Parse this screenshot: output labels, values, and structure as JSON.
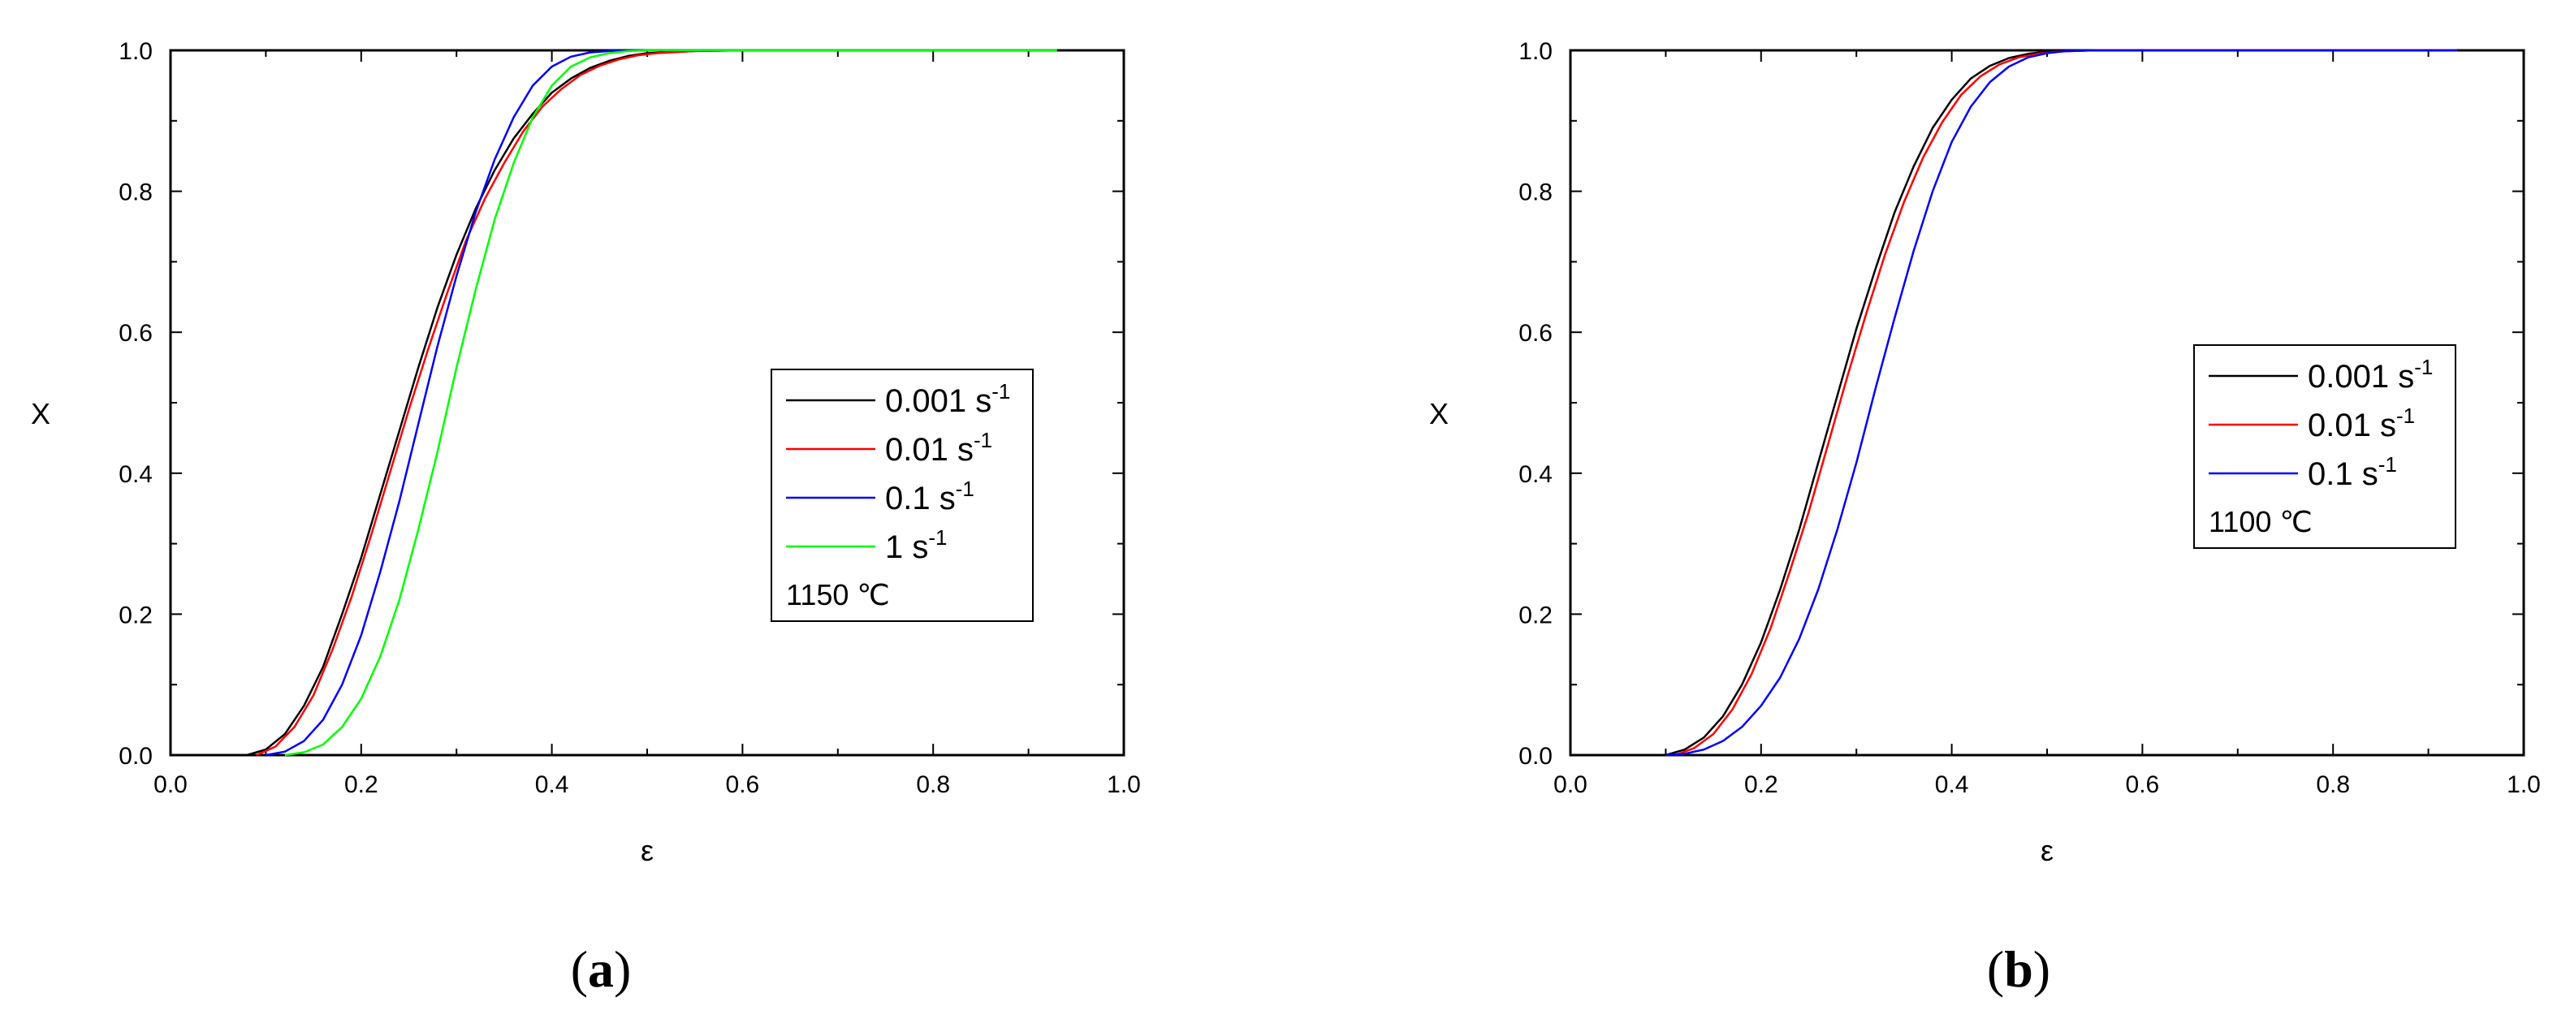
{
  "chart_data": [
    {
      "type": "line",
      "panel_label": "a",
      "xlabel": "ε",
      "ylabel": "X",
      "xlim": [
        0.0,
        1.0
      ],
      "ylim": [
        0.0,
        1.0
      ],
      "xticks": [
        "0.0",
        "0.2",
        "0.4",
        "0.6",
        "0.8",
        "1.0"
      ],
      "yticks": [
        "0.0",
        "0.2",
        "0.4",
        "0.6",
        "0.8",
        "1.0"
      ],
      "grid": false,
      "legend_position": "right",
      "legend_note": "1150 ℃",
      "series": [
        {
          "name": "0.001 s",
          "exp": "-1",
          "color": "#000000",
          "x": [
            0.08,
            0.1,
            0.12,
            0.14,
            0.16,
            0.18,
            0.2,
            0.22,
            0.24,
            0.26,
            0.28,
            0.3,
            0.32,
            0.34,
            0.36,
            0.38,
            0.4,
            0.42,
            0.44,
            0.46,
            0.48,
            0.5,
            0.55,
            0.6,
            0.7,
            0.8,
            0.93
          ],
          "y": [
            0.0,
            0.008,
            0.03,
            0.07,
            0.125,
            0.2,
            0.28,
            0.37,
            0.46,
            0.55,
            0.635,
            0.71,
            0.775,
            0.83,
            0.875,
            0.91,
            0.94,
            0.96,
            0.975,
            0.985,
            0.992,
            0.996,
            0.999,
            1.0,
            1.0,
            1.0,
            1.0
          ]
        },
        {
          "name": "0.01 s",
          "exp": "-1",
          "color": "#ff0000",
          "x": [
            0.09,
            0.11,
            0.13,
            0.15,
            0.17,
            0.19,
            0.21,
            0.23,
            0.25,
            0.27,
            0.29,
            0.31,
            0.33,
            0.35,
            0.37,
            0.39,
            0.41,
            0.43,
            0.45,
            0.47,
            0.49,
            0.51,
            0.55,
            0.6,
            0.7,
            0.8,
            0.93
          ],
          "y": [
            0.0,
            0.012,
            0.04,
            0.085,
            0.15,
            0.225,
            0.31,
            0.4,
            0.49,
            0.575,
            0.655,
            0.73,
            0.79,
            0.84,
            0.885,
            0.92,
            0.945,
            0.965,
            0.978,
            0.987,
            0.993,
            0.996,
            0.999,
            1.0,
            1.0,
            1.0,
            1.0
          ]
        },
        {
          "name": "0.1 s",
          "exp": "-1",
          "color": "#0000ff",
          "x": [
            0.1,
            0.12,
            0.14,
            0.16,
            0.18,
            0.2,
            0.22,
            0.24,
            0.26,
            0.28,
            0.3,
            0.32,
            0.34,
            0.36,
            0.38,
            0.4,
            0.42,
            0.44,
            0.46,
            0.48,
            0.5,
            0.55,
            0.6,
            0.7,
            0.8,
            0.93
          ],
          "y": [
            0.0,
            0.005,
            0.02,
            0.05,
            0.1,
            0.17,
            0.26,
            0.36,
            0.47,
            0.58,
            0.68,
            0.77,
            0.845,
            0.905,
            0.95,
            0.977,
            0.991,
            0.997,
            0.999,
            1.0,
            1.0,
            1.0,
            1.0,
            1.0,
            1.0,
            1.0
          ]
        },
        {
          "name": "1 s",
          "exp": "-1",
          "color": "#00ff00",
          "x": [
            0.12,
            0.14,
            0.16,
            0.18,
            0.2,
            0.22,
            0.24,
            0.26,
            0.28,
            0.3,
            0.32,
            0.34,
            0.36,
            0.38,
            0.4,
            0.42,
            0.44,
            0.46,
            0.48,
            0.5,
            0.55,
            0.6,
            0.7,
            0.8,
            0.93
          ],
          "y": [
            0.0,
            0.004,
            0.015,
            0.04,
            0.08,
            0.14,
            0.22,
            0.32,
            0.43,
            0.55,
            0.66,
            0.76,
            0.84,
            0.905,
            0.95,
            0.977,
            0.99,
            0.996,
            0.999,
            1.0,
            1.0,
            1.0,
            1.0,
            1.0,
            1.0
          ]
        }
      ]
    },
    {
      "type": "line",
      "panel_label": "b",
      "xlabel": "ε",
      "ylabel": "X",
      "xlim": [
        0.0,
        1.0
      ],
      "ylim": [
        0.0,
        1.0
      ],
      "xticks": [
        "0.0",
        "0.2",
        "0.4",
        "0.6",
        "0.8",
        "1.0"
      ],
      "yticks": [
        "0.0",
        "0.2",
        "0.4",
        "0.6",
        "0.8",
        "1.0"
      ],
      "grid": false,
      "legend_position": "right",
      "legend_note": "1100 ℃",
      "series": [
        {
          "name": "0.001 s",
          "exp": "-1",
          "color": "#000000",
          "x": [
            0.1,
            0.12,
            0.14,
            0.16,
            0.18,
            0.2,
            0.22,
            0.24,
            0.26,
            0.28,
            0.3,
            0.32,
            0.34,
            0.36,
            0.38,
            0.4,
            0.42,
            0.44,
            0.46,
            0.48,
            0.5,
            0.55,
            0.6,
            0.7,
            0.8,
            0.93
          ],
          "y": [
            0.0,
            0.008,
            0.025,
            0.055,
            0.1,
            0.16,
            0.235,
            0.32,
            0.415,
            0.51,
            0.605,
            0.69,
            0.77,
            0.835,
            0.89,
            0.93,
            0.96,
            0.978,
            0.989,
            0.995,
            0.998,
            1.0,
            1.0,
            1.0,
            1.0,
            1.0
          ]
        },
        {
          "name": "0.01 s",
          "exp": "-1",
          "color": "#ff0000",
          "x": [
            0.11,
            0.13,
            0.15,
            0.17,
            0.19,
            0.21,
            0.23,
            0.25,
            0.27,
            0.29,
            0.31,
            0.33,
            0.35,
            0.37,
            0.39,
            0.41,
            0.43,
            0.45,
            0.47,
            0.49,
            0.51,
            0.55,
            0.6,
            0.7,
            0.8,
            0.93
          ],
          "y": [
            0.0,
            0.01,
            0.03,
            0.065,
            0.115,
            0.18,
            0.26,
            0.345,
            0.44,
            0.535,
            0.625,
            0.71,
            0.785,
            0.848,
            0.898,
            0.937,
            0.963,
            0.98,
            0.99,
            0.995,
            0.998,
            1.0,
            1.0,
            1.0,
            1.0,
            1.0
          ]
        },
        {
          "name": "0.1 s",
          "exp": "-1",
          "color": "#0000ff",
          "x": [
            0.1,
            0.12,
            0.14,
            0.16,
            0.18,
            0.2,
            0.22,
            0.24,
            0.26,
            0.28,
            0.3,
            0.32,
            0.34,
            0.36,
            0.38,
            0.4,
            0.42,
            0.44,
            0.46,
            0.48,
            0.5,
            0.52,
            0.55,
            0.6,
            0.7,
            0.8,
            0.93
          ],
          "y": [
            0.0,
            0.002,
            0.008,
            0.02,
            0.04,
            0.07,
            0.11,
            0.165,
            0.235,
            0.32,
            0.415,
            0.52,
            0.62,
            0.715,
            0.8,
            0.87,
            0.92,
            0.955,
            0.977,
            0.99,
            0.996,
            0.999,
            1.0,
            1.0,
            1.0,
            1.0,
            1.0
          ]
        }
      ]
    }
  ]
}
